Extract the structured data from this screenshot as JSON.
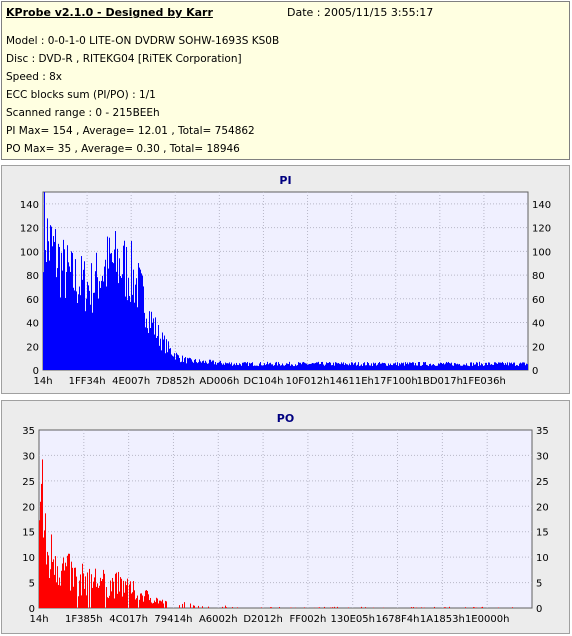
{
  "info": {
    "title": "KProbe v2.1.0 - Designed by Karr",
    "date": "Date : 2005/11/15 3:55:17",
    "lines": [
      "Model : 0-0-1-0 LITE-ON DVDRW SOHW-1693S KS0B",
      "Disc : DVD-R , RITEKG04 [RiTEK Corporation]",
      "Speed : 8x",
      "ECC blocks sum (PI/PO) : 1/1",
      "Scanned range : 0 - 215BEEh",
      "PI Max= 154 , Average= 12.01 , Total= 754862",
      "PO Max= 35 , Average= 0.30 , Total= 18946"
    ]
  },
  "colors": {
    "pi": "#0000ff",
    "po": "#ff0000",
    "plot_bg": "#f0f0ff",
    "grid": "#b8b8c8"
  },
  "chart_data": [
    {
      "type": "area",
      "title": "PI",
      "ylim": [
        0,
        150
      ],
      "yticks": [
        0,
        20,
        40,
        60,
        80,
        100,
        120,
        140
      ],
      "xtick_labels": [
        "14h",
        "1FF34h",
        "4E007h",
        "7D852h",
        "AD006h",
        "DC104h",
        "10F012h",
        "14611Eh",
        "17F100h",
        "1BD017h",
        "1FE036h"
      ],
      "grid": true,
      "series": [
        {
          "x_fraction": [
            0,
            0.01,
            0.02,
            0.03,
            0.04,
            0.06,
            0.08,
            0.1,
            0.12,
            0.14,
            0.16,
            0.18,
            0.2,
            0.22,
            0.24,
            0.26,
            0.28,
            0.3,
            0.33,
            0.36,
            0.4,
            0.45,
            0.5,
            0.55,
            0.6,
            0.65,
            0.7,
            0.75,
            0.8,
            0.85,
            0.9,
            0.95,
            1.0
          ],
          "values": [
            150,
            125,
            118,
            110,
            100,
            90,
            86,
            82,
            98,
            106,
            104,
            96,
            78,
            52,
            32,
            20,
            12,
            9,
            8,
            7,
            6,
            6,
            6,
            6,
            6,
            6,
            6,
            6,
            6,
            6,
            6,
            6,
            6
          ]
        }
      ]
    },
    {
      "type": "bar",
      "title": "PO",
      "ylim": [
        0,
        35
      ],
      "yticks": [
        0,
        5,
        10,
        15,
        20,
        25,
        30,
        35
      ],
      "xtick_labels": [
        "14h",
        "1F385h",
        "4C017h",
        "79414h",
        "A6002h",
        "D2012h",
        "FF002h",
        "130E05h",
        "1678F4h",
        "1A1853h",
        "1E0000h"
      ],
      "grid": true,
      "series": [
        {
          "x_fraction": [
            0,
            0.005,
            0.01,
            0.015,
            0.02,
            0.03,
            0.04,
            0.06,
            0.08,
            0.1,
            0.12,
            0.14,
            0.16,
            0.18,
            0.2,
            0.22,
            0.24,
            0.26,
            0.28,
            0.3,
            0.33,
            0.36,
            0.4,
            0.45,
            0.5,
            0.6,
            0.7,
            0.8,
            0.9,
            1.0
          ],
          "values": [
            22,
            35,
            18,
            14,
            12,
            15,
            11,
            9,
            7,
            8,
            7,
            6,
            6,
            5,
            4,
            3,
            2,
            1,
            1,
            1,
            0.5,
            0.5,
            0.3,
            0.2,
            0.2,
            0.2,
            0.2,
            0.2,
            0.2,
            0.2
          ]
        }
      ]
    }
  ]
}
